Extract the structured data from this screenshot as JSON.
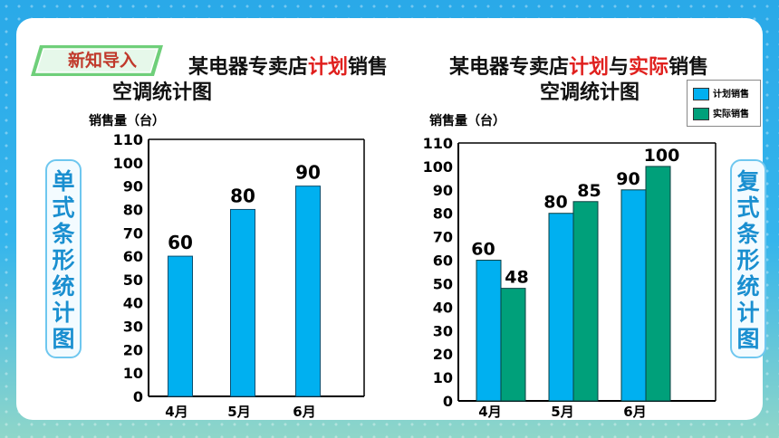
{
  "tag": {
    "label": "新知导入"
  },
  "left_side_label": [
    "单",
    "式",
    "条",
    "形",
    "统",
    "计",
    "图"
  ],
  "right_side_label": [
    "复",
    "式",
    "条",
    "形",
    "统",
    "计",
    "图"
  ],
  "colors": {
    "plan": "#00b0f0",
    "actual": "#00a07a",
    "title_red": "#e0201e",
    "side_text": "#1a8fd0"
  },
  "chart_data": [
    {
      "type": "bar",
      "title_parts": [
        "某电器专卖店",
        "计划",
        "销售",
        "空调统计图"
      ],
      "ylabel": "销售量（台）",
      "categories": [
        "4月",
        "5月",
        "6月"
      ],
      "values": [
        60,
        80,
        90
      ],
      "data_labels": [
        "60",
        "80",
        "90"
      ],
      "ylim": [
        0,
        110
      ],
      "yticks": [
        "0",
        "10",
        "20",
        "30",
        "40",
        "50",
        "60",
        "70",
        "80",
        "90",
        "100",
        "110"
      ]
    },
    {
      "type": "bar",
      "title_parts": [
        "某电器专卖店",
        "计划",
        "与",
        "实际",
        "销售",
        "空调统计图"
      ],
      "ylabel": "销售量（台）",
      "categories": [
        "4月",
        "5月",
        "6月"
      ],
      "series": [
        {
          "name": "计划销售",
          "values": [
            60,
            80,
            90
          ],
          "labels": [
            "60",
            "80",
            "90"
          ]
        },
        {
          "name": "实际销售",
          "values": [
            48,
            85,
            100
          ],
          "labels": [
            "48",
            "85",
            "100"
          ]
        }
      ],
      "ylim": [
        0,
        110
      ],
      "yticks": [
        "0",
        "10",
        "20",
        "30",
        "40",
        "50",
        "60",
        "70",
        "80",
        "90",
        "100",
        "110"
      ],
      "legend": "top-right"
    }
  ]
}
